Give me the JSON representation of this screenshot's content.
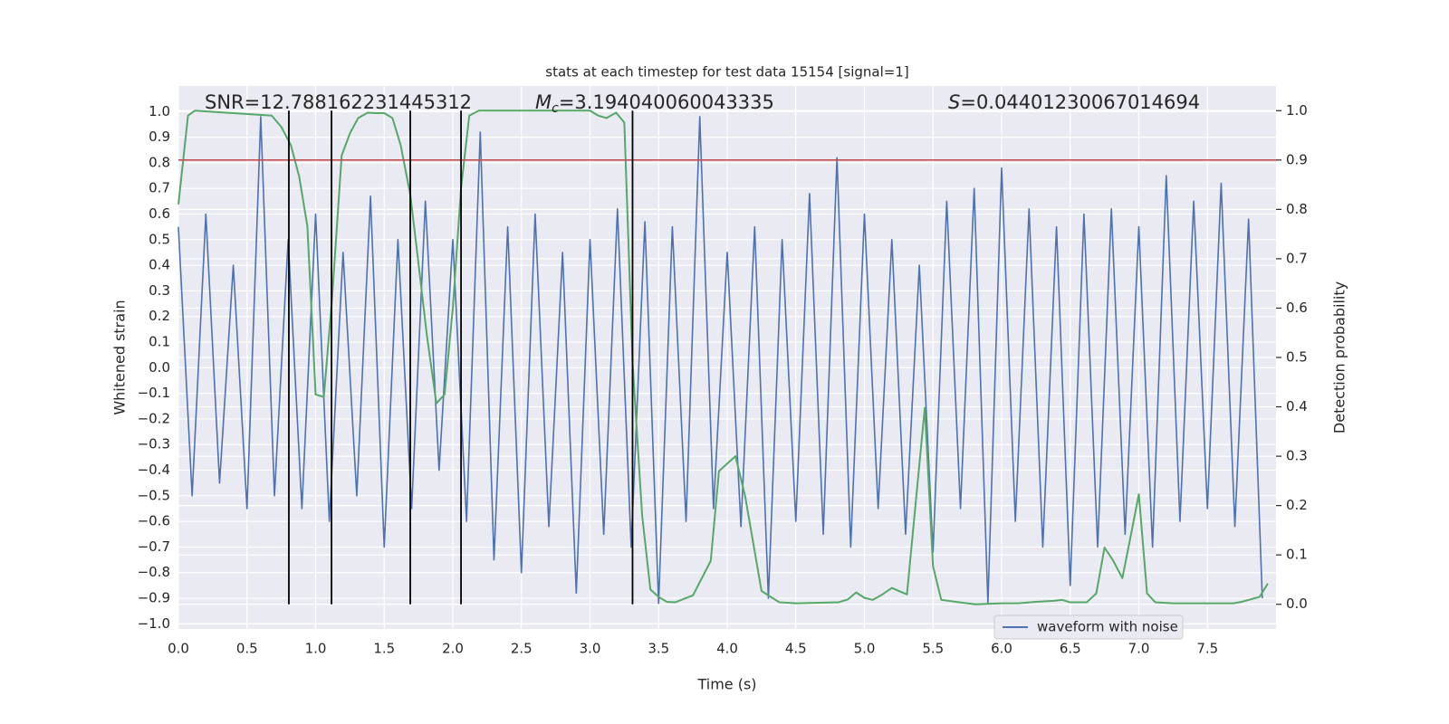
{
  "chart_data": {
    "type": "line",
    "title": "stats at each timestep for test data 15154 [signal=1]",
    "xlabel": "Time (s)",
    "ylabel": "Whitened strain",
    "y2label": "Detection probability",
    "xlim": [
      0,
      8
    ],
    "ylim": [
      -1.02,
      1.1
    ],
    "y2lim": [
      -0.05,
      1.05
    ],
    "xticks": [
      {
        "value": 0,
        "label": "0.0"
      },
      0.5,
      {
        "value": 1,
        "label": "1.0"
      },
      1.5,
      {
        "value": 2,
        "label": "2.0"
      },
      2.5,
      {
        "value": 3,
        "label": "3.0"
      },
      3.5,
      {
        "value": 4,
        "label": "4.0"
      },
      4.5,
      {
        "value": 5,
        "label": "5.0"
      },
      5.5,
      {
        "value": 6,
        "label": "6.0"
      },
      6.5,
      {
        "value": 7,
        "label": "7.0"
      },
      7.5
    ],
    "yticks": [
      {
        "value": 1,
        "label": "1.0"
      },
      0.9,
      0.8,
      0.7,
      0.6,
      0.5,
      0.4,
      0.3,
      0.2,
      0.1,
      {
        "value": 0,
        "label": "0.0"
      },
      {
        "value": -0.1,
        "label": "−0.1"
      },
      {
        "value": -0.2,
        "label": "−0.2"
      },
      {
        "value": -0.3,
        "label": "−0.3"
      },
      {
        "value": -0.4,
        "label": "−0.4"
      },
      {
        "value": -0.5,
        "label": "−0.5"
      },
      {
        "value": -0.6,
        "label": "−0.6"
      },
      {
        "value": -0.7,
        "label": "−0.7"
      },
      {
        "value": -0.8,
        "label": "−0.8"
      },
      {
        "value": -0.9,
        "label": "−0.9"
      },
      {
        "value": -1,
        "label": "−1.0"
      }
    ],
    "y2ticks": [
      {
        "value": 0,
        "label": "0.0"
      },
      0.1,
      0.2,
      0.3,
      0.4,
      0.5,
      0.6,
      0.7,
      0.8,
      0.9,
      {
        "value": 1,
        "label": "1.0"
      }
    ],
    "grid": true,
    "legend": "lower right",
    "annotations": [
      {
        "text": "SNR=12.788162231445312"
      },
      {
        "symbol": "M",
        "sub": "c",
        "text": "=3.194040060043335"
      },
      {
        "symbol": "S",
        "text": "=0.04401230067014694"
      }
    ],
    "hlines": [
      {
        "y": 0.9,
        "axis": "y2",
        "color": "#c44e52"
      }
    ],
    "vlines": [
      {
        "x": 0.805,
        "ymin": 0,
        "ymax": 1,
        "color": "#000000"
      },
      {
        "x": 1.116,
        "ymin": 0,
        "ymax": 1,
        "color": "#000000"
      },
      {
        "x": 1.69,
        "ymin": 0,
        "ymax": 1,
        "color": "#000000"
      },
      {
        "x": 2.06,
        "ymin": 0,
        "ymax": 1,
        "color": "#000000"
      },
      {
        "x": 3.31,
        "ymin": 0,
        "ymax": 1,
        "color": "#000000"
      }
    ],
    "series": [
      {
        "name": "waveform with noise",
        "color": "#4c72b0",
        "x": [
          0.0,
          0.1,
          0.2,
          0.3,
          0.4,
          0.5,
          0.6,
          0.7,
          0.8,
          0.9,
          1.0,
          1.1,
          1.2,
          1.3,
          1.4,
          1.5,
          1.6,
          1.7,
          1.8,
          1.9,
          2.0,
          2.1,
          2.2,
          2.3,
          2.4,
          2.5,
          2.6,
          2.7,
          2.8,
          2.9,
          3.0,
          3.1,
          3.2,
          3.3,
          3.4,
          3.5,
          3.6,
          3.7,
          3.8,
          3.9,
          4.0,
          4.1,
          4.2,
          4.3,
          4.4,
          4.5,
          4.6,
          4.7,
          4.8,
          4.9,
          5.0,
          5.1,
          5.2,
          5.3,
          5.4,
          5.5,
          5.6,
          5.7,
          5.8,
          5.9,
          6.0,
          6.1,
          6.2,
          6.3,
          6.4,
          6.5,
          6.6,
          6.7,
          6.8,
          6.9,
          7.0,
          7.1,
          7.2,
          7.3,
          7.4,
          7.5,
          7.6,
          7.7,
          7.8,
          7.9
        ],
        "values": [
          0.55,
          -0.5,
          0.6,
          -0.45,
          0.4,
          -0.55,
          0.98,
          -0.5,
          0.5,
          -0.55,
          0.6,
          -0.6,
          0.45,
          -0.5,
          0.67,
          -0.7,
          0.5,
          -0.55,
          0.65,
          -0.4,
          0.5,
          -0.6,
          0.92,
          -0.75,
          0.55,
          -0.8,
          0.6,
          -0.62,
          0.45,
          -0.88,
          0.5,
          -0.65,
          0.62,
          -0.7,
          0.57,
          -0.92,
          0.55,
          -0.6,
          0.98,
          -0.55,
          0.45,
          -0.62,
          0.55,
          -0.9,
          0.5,
          -0.6,
          0.68,
          -0.65,
          0.82,
          -0.7,
          0.6,
          -0.55,
          0.5,
          -0.65,
          0.4,
          -0.72,
          0.65,
          -0.55,
          0.7,
          -0.92,
          0.78,
          -0.6,
          0.62,
          -0.7,
          0.55,
          -0.85,
          0.6,
          -0.7,
          0.62,
          -0.65,
          0.55,
          -0.7,
          0.75,
          -0.6,
          0.65,
          -0.55,
          0.72,
          -0.62,
          0.58,
          -0.9
        ]
      },
      {
        "color": "#55a868",
        "axis": "y2",
        "x": [
          0.0,
          0.07,
          0.12,
          0.68,
          0.75,
          0.82,
          0.88,
          0.94,
          1.0,
          1.06,
          1.12,
          1.19,
          1.25,
          1.31,
          1.38,
          1.44,
          1.5,
          1.56,
          1.62,
          1.69,
          1.75,
          1.81,
          1.88,
          1.94,
          2.0,
          2.06,
          2.12,
          2.19,
          3.0,
          3.06,
          3.12,
          3.19,
          3.25,
          3.31,
          3.38,
          3.44,
          3.5,
          3.56,
          3.62,
          3.75,
          3.88,
          3.94,
          4.06,
          4.13,
          4.25,
          4.38,
          4.5,
          4.81,
          4.88,
          4.94,
          5.0,
          5.06,
          5.12,
          5.2,
          5.31,
          5.44,
          5.5,
          5.56,
          5.69,
          5.81,
          6.0,
          6.12,
          6.25,
          6.38,
          6.44,
          6.5,
          6.62,
          6.69,
          6.75,
          6.81,
          6.88,
          6.94,
          7.0,
          7.06,
          7.12,
          7.25,
          7.69,
          7.75,
          7.88,
          7.94
        ],
        "values": [
          0.81,
          0.99,
          1.0,
          0.99,
          0.967,
          0.93,
          0.867,
          0.766,
          0.425,
          0.42,
          0.62,
          0.909,
          0.954,
          0.985,
          0.996,
          0.995,
          0.995,
          0.985,
          0.93,
          0.83,
          0.69,
          0.547,
          0.407,
          0.425,
          0.6,
          0.843,
          0.99,
          1.0,
          1.0,
          0.99,
          0.985,
          0.996,
          0.976,
          0.49,
          0.18,
          0.03,
          0.015,
          0.005,
          0.004,
          0.018,
          0.088,
          0.27,
          0.3,
          0.22,
          0.027,
          0.004,
          0.002,
          0.004,
          0.01,
          0.024,
          0.013,
          0.009,
          0.018,
          0.033,
          0.02,
          0.398,
          0.077,
          0.009,
          0.004,
          0.0,
          0.002,
          0.002,
          0.005,
          0.007,
          0.009,
          0.004,
          0.004,
          0.022,
          0.115,
          0.09,
          0.053,
          0.137,
          0.223,
          0.022,
          0.004,
          0.002,
          0.002,
          0.005,
          0.015,
          0.042
        ]
      }
    ]
  }
}
